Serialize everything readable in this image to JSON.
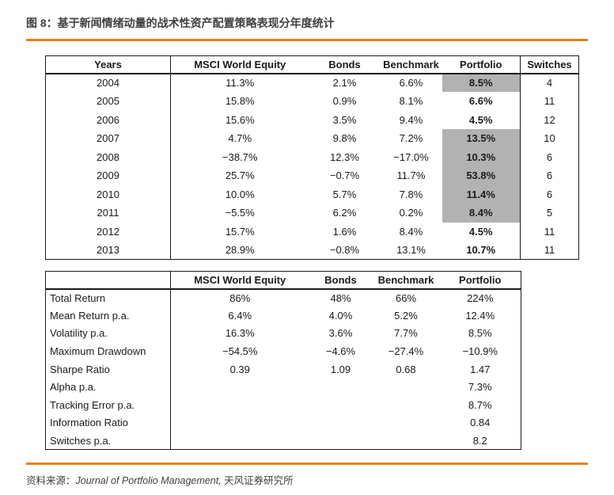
{
  "title": {
    "label": "图 8：基于新闻情绪动量的战术性资产配置策略表现分年度统计"
  },
  "colors": {
    "accent_orange": "#E8821E",
    "highlight_gray": "#B2B2B2",
    "text_dark": "#3F3F3F",
    "table_border": "#1A1A1A"
  },
  "annual_table": {
    "columns": [
      "Years",
      "MSCI World Equity",
      "Bonds",
      "Benchmark",
      "Portfolio",
      "Switches"
    ],
    "rows": [
      {
        "year": "2004",
        "msci": "11.3%",
        "bonds": "2.1%",
        "benchmark": "6.6%",
        "portfolio": "8.5%",
        "switches": "4",
        "portfolio_highlighted": true
      },
      {
        "year": "2005",
        "msci": "15.8%",
        "bonds": "0.9%",
        "benchmark": "8.1%",
        "portfolio": "6.6%",
        "switches": "11",
        "portfolio_highlighted": false
      },
      {
        "year": "2006",
        "msci": "15.6%",
        "bonds": "3.5%",
        "benchmark": "9.4%",
        "portfolio": "4.5%",
        "switches": "12",
        "portfolio_highlighted": false
      },
      {
        "year": "2007",
        "msci": "4.7%",
        "bonds": "9.8%",
        "benchmark": "7.2%",
        "portfolio": "13.5%",
        "switches": "10",
        "portfolio_highlighted": true
      },
      {
        "year": "2008",
        "msci": "−38.7%",
        "bonds": "12.3%",
        "benchmark": "−17.0%",
        "portfolio": "10.3%",
        "switches": "6",
        "portfolio_highlighted": true
      },
      {
        "year": "2009",
        "msci": "25.7%",
        "bonds": "−0.7%",
        "benchmark": "11.7%",
        "portfolio": "53.8%",
        "switches": "6",
        "portfolio_highlighted": true
      },
      {
        "year": "2010",
        "msci": "10.0%",
        "bonds": "5.7%",
        "benchmark": "7.8%",
        "portfolio": "11.4%",
        "switches": "6",
        "portfolio_highlighted": true
      },
      {
        "year": "2011",
        "msci": "−5.5%",
        "bonds": "6.2%",
        "benchmark": "0.2%",
        "portfolio": "8.4%",
        "switches": "5",
        "portfolio_highlighted": true
      },
      {
        "year": "2012",
        "msci": "15.7%",
        "bonds": "1.6%",
        "benchmark": "8.4%",
        "portfolio": "4.5%",
        "switches": "11",
        "portfolio_highlighted": false
      },
      {
        "year": "2013",
        "msci": "28.9%",
        "bonds": "−0.8%",
        "benchmark": "13.1%",
        "portfolio": "10.7%",
        "switches": "11",
        "portfolio_highlighted": false
      }
    ]
  },
  "summary_table": {
    "columns": [
      "",
      "MSCI World Equity",
      "Bonds",
      "Benchmark",
      "Portfolio"
    ],
    "rows": [
      {
        "label": "Total Return",
        "msci": "86%",
        "bonds": "48%",
        "benchmark": "66%",
        "portfolio": "224%"
      },
      {
        "label": "Mean Return p.a.",
        "msci": "6.4%",
        "bonds": "4.0%",
        "benchmark": "5.2%",
        "portfolio": "12.4%"
      },
      {
        "label": "Volatility p.a.",
        "msci": "16.3%",
        "bonds": "3.6%",
        "benchmark": "7.7%",
        "portfolio": "8.5%"
      },
      {
        "label": "Maximum Drawdown",
        "msci": "−54.5%",
        "bonds": "−4.6%",
        "benchmark": "−27.4%",
        "portfolio": "−10.9%"
      },
      {
        "label": "Sharpe Ratio",
        "msci": "0.39",
        "bonds": "1.09",
        "benchmark": "0.68",
        "portfolio": "1.47"
      },
      {
        "label": "Alpha p.a.",
        "msci": "",
        "bonds": "",
        "benchmark": "",
        "portfolio": "7.3%"
      },
      {
        "label": "Tracking Error p.a.",
        "msci": "",
        "bonds": "",
        "benchmark": "",
        "portfolio": "8.7%"
      },
      {
        "label": "Information Ratio",
        "msci": "",
        "bonds": "",
        "benchmark": "",
        "portfolio": "0.84"
      },
      {
        "label": "Switches p.a.",
        "msci": "",
        "bonds": "",
        "benchmark": "",
        "portfolio": "8.2"
      }
    ]
  },
  "footer": {
    "prefix": "资料来源：",
    "source_italic": "Journal of Portfolio Management,",
    "source_suffix": " 天风证券研究所"
  }
}
